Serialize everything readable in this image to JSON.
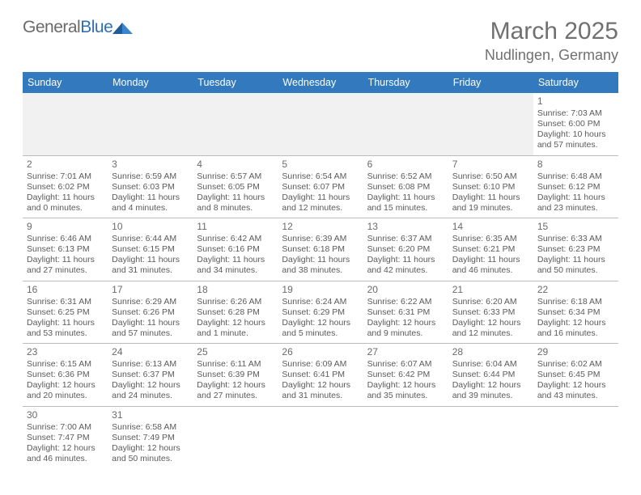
{
  "logo": {
    "word1": "General",
    "word2": "Blue"
  },
  "title": "March 2025",
  "location": "Nudlingen, Germany",
  "colors": {
    "header_bg": "#3279bd",
    "header_text": "#ffffff",
    "grid_line": "#bcbcbc",
    "body_text": "#5a5a5a",
    "title_text": "#707070",
    "empty_row_bg": "#f1f1f1",
    "logo_blue": "#2f70b5"
  },
  "day_headers": [
    "Sunday",
    "Monday",
    "Tuesday",
    "Wednesday",
    "Thursday",
    "Friday",
    "Saturday"
  ],
  "weeks": [
    [
      null,
      null,
      null,
      null,
      null,
      null,
      {
        "n": "1",
        "sunrise": "7:03 AM",
        "sunset": "6:00 PM",
        "daylight": "10 hours and 57 minutes."
      }
    ],
    [
      {
        "n": "2",
        "sunrise": "7:01 AM",
        "sunset": "6:02 PM",
        "daylight": "11 hours and 0 minutes."
      },
      {
        "n": "3",
        "sunrise": "6:59 AM",
        "sunset": "6:03 PM",
        "daylight": "11 hours and 4 minutes."
      },
      {
        "n": "4",
        "sunrise": "6:57 AM",
        "sunset": "6:05 PM",
        "daylight": "11 hours and 8 minutes."
      },
      {
        "n": "5",
        "sunrise": "6:54 AM",
        "sunset": "6:07 PM",
        "daylight": "11 hours and 12 minutes."
      },
      {
        "n": "6",
        "sunrise": "6:52 AM",
        "sunset": "6:08 PM",
        "daylight": "11 hours and 15 minutes."
      },
      {
        "n": "7",
        "sunrise": "6:50 AM",
        "sunset": "6:10 PM",
        "daylight": "11 hours and 19 minutes."
      },
      {
        "n": "8",
        "sunrise": "6:48 AM",
        "sunset": "6:12 PM",
        "daylight": "11 hours and 23 minutes."
      }
    ],
    [
      {
        "n": "9",
        "sunrise": "6:46 AM",
        "sunset": "6:13 PM",
        "daylight": "11 hours and 27 minutes."
      },
      {
        "n": "10",
        "sunrise": "6:44 AM",
        "sunset": "6:15 PM",
        "daylight": "11 hours and 31 minutes."
      },
      {
        "n": "11",
        "sunrise": "6:42 AM",
        "sunset": "6:16 PM",
        "daylight": "11 hours and 34 minutes."
      },
      {
        "n": "12",
        "sunrise": "6:39 AM",
        "sunset": "6:18 PM",
        "daylight": "11 hours and 38 minutes."
      },
      {
        "n": "13",
        "sunrise": "6:37 AM",
        "sunset": "6:20 PM",
        "daylight": "11 hours and 42 minutes."
      },
      {
        "n": "14",
        "sunrise": "6:35 AM",
        "sunset": "6:21 PM",
        "daylight": "11 hours and 46 minutes."
      },
      {
        "n": "15",
        "sunrise": "6:33 AM",
        "sunset": "6:23 PM",
        "daylight": "11 hours and 50 minutes."
      }
    ],
    [
      {
        "n": "16",
        "sunrise": "6:31 AM",
        "sunset": "6:25 PM",
        "daylight": "11 hours and 53 minutes."
      },
      {
        "n": "17",
        "sunrise": "6:29 AM",
        "sunset": "6:26 PM",
        "daylight": "11 hours and 57 minutes."
      },
      {
        "n": "18",
        "sunrise": "6:26 AM",
        "sunset": "6:28 PM",
        "daylight": "12 hours and 1 minute."
      },
      {
        "n": "19",
        "sunrise": "6:24 AM",
        "sunset": "6:29 PM",
        "daylight": "12 hours and 5 minutes."
      },
      {
        "n": "20",
        "sunrise": "6:22 AM",
        "sunset": "6:31 PM",
        "daylight": "12 hours and 9 minutes."
      },
      {
        "n": "21",
        "sunrise": "6:20 AM",
        "sunset": "6:33 PM",
        "daylight": "12 hours and 12 minutes."
      },
      {
        "n": "22",
        "sunrise": "6:18 AM",
        "sunset": "6:34 PM",
        "daylight": "12 hours and 16 minutes."
      }
    ],
    [
      {
        "n": "23",
        "sunrise": "6:15 AM",
        "sunset": "6:36 PM",
        "daylight": "12 hours and 20 minutes."
      },
      {
        "n": "24",
        "sunrise": "6:13 AM",
        "sunset": "6:37 PM",
        "daylight": "12 hours and 24 minutes."
      },
      {
        "n": "25",
        "sunrise": "6:11 AM",
        "sunset": "6:39 PM",
        "daylight": "12 hours and 27 minutes."
      },
      {
        "n": "26",
        "sunrise": "6:09 AM",
        "sunset": "6:41 PM",
        "daylight": "12 hours and 31 minutes."
      },
      {
        "n": "27",
        "sunrise": "6:07 AM",
        "sunset": "6:42 PM",
        "daylight": "12 hours and 35 minutes."
      },
      {
        "n": "28",
        "sunrise": "6:04 AM",
        "sunset": "6:44 PM",
        "daylight": "12 hours and 39 minutes."
      },
      {
        "n": "29",
        "sunrise": "6:02 AM",
        "sunset": "6:45 PM",
        "daylight": "12 hours and 43 minutes."
      }
    ],
    [
      {
        "n": "30",
        "sunrise": "7:00 AM",
        "sunset": "7:47 PM",
        "daylight": "12 hours and 46 minutes."
      },
      {
        "n": "31",
        "sunrise": "6:58 AM",
        "sunset": "7:49 PM",
        "daylight": "12 hours and 50 minutes."
      },
      null,
      null,
      null,
      null,
      null
    ]
  ],
  "labels": {
    "sunrise": "Sunrise: ",
    "sunset": "Sunset: ",
    "daylight": "Daylight: "
  }
}
